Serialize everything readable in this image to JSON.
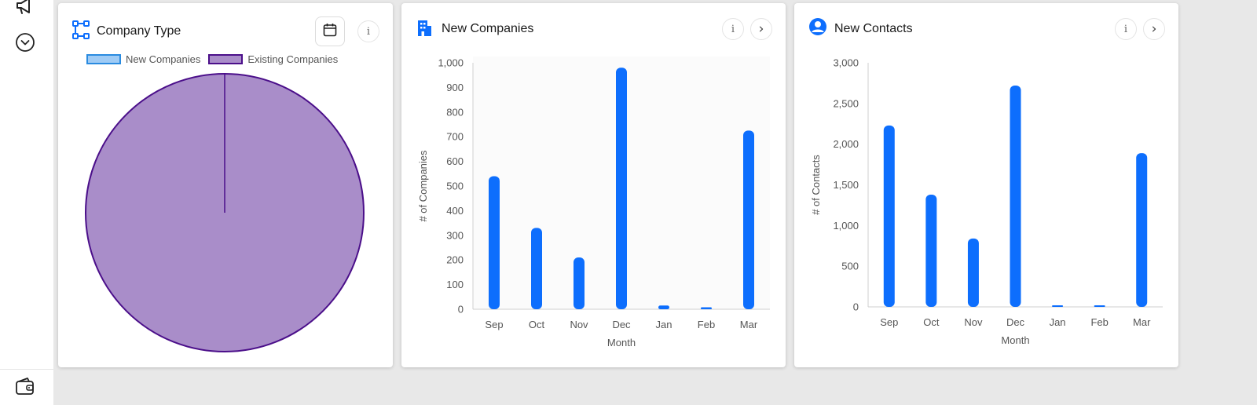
{
  "colors": {
    "accent": "#0d6efd",
    "bar": "#0d6efd",
    "pie_fill": "#a98dc9",
    "pie_stroke": "#4b0f8a",
    "new_swatch_fill": "#9fcbf5",
    "new_swatch_stroke": "#2a8be0"
  },
  "sidebar": {
    "items": [
      {
        "icon": "megaphone-icon"
      },
      {
        "icon": "chevron-down-circle-icon"
      },
      {
        "icon": "wallet-icon"
      }
    ]
  },
  "company_type": {
    "title": "Company Type",
    "icon": "hierarchy-icon",
    "calendar_icon": "calendar-icon",
    "info_label": "i",
    "legend": [
      "New Companies",
      "Existing Companies"
    ],
    "chart_data": {
      "type": "pie",
      "labels": [
        "New Companies",
        "Existing Companies"
      ],
      "values": [
        0,
        100
      ]
    }
  },
  "new_companies": {
    "title": "New Companies",
    "icon": "building-icon",
    "info_label": "i",
    "next_label": "›",
    "chart_data": {
      "type": "bar",
      "categories": [
        "Sep",
        "Oct",
        "Nov",
        "Dec",
        "Jan",
        "Feb",
        "Mar"
      ],
      "values": [
        540,
        330,
        210,
        980,
        15,
        8,
        725
      ],
      "xlabel": "Month",
      "ylabel": "# of Companies",
      "ylim": [
        0,
        1000
      ],
      "yticks": [
        "0",
        "100",
        "200",
        "300",
        "400",
        "500",
        "600",
        "700",
        "800",
        "900",
        "1,000"
      ]
    }
  },
  "new_contacts": {
    "title": "New Contacts",
    "icon": "user-circle-icon",
    "info_label": "i",
    "next_label": "›",
    "chart_data": {
      "type": "bar",
      "categories": [
        "Sep",
        "Oct",
        "Nov",
        "Dec",
        "Jan",
        "Feb",
        "Mar"
      ],
      "values": [
        2230,
        1380,
        840,
        2720,
        15,
        15,
        1890
      ],
      "xlabel": "Month",
      "ylabel": "# of Contacts",
      "ylim": [
        0,
        3000
      ],
      "yticks": [
        "0",
        "500",
        "1,000",
        "1,500",
        "2,000",
        "2,500",
        "3,000"
      ]
    }
  }
}
